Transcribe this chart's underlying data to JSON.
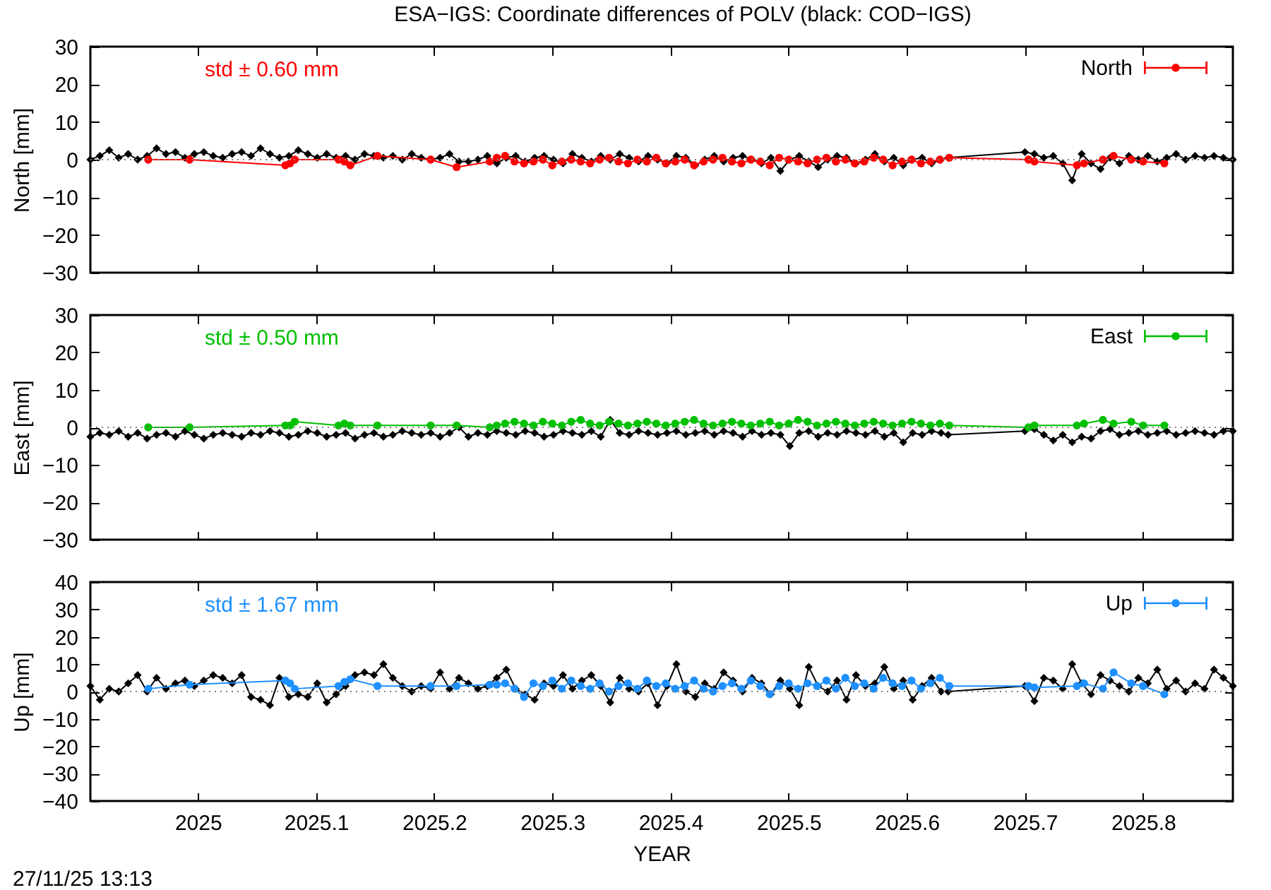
{
  "chart_data": [
    {
      "type": "line",
      "title": "ESA−IGS: Coordinate differences of POLV (black: COD−IGS)",
      "ylabel": "North [mm]",
      "xlim": [
        2024.909,
        2025.876
      ],
      "xticks": [
        2025,
        2025.1,
        2025.2,
        2025.3,
        2025.4,
        2025.5,
        2025.6,
        2025.7,
        2025.8
      ],
      "ylim": [
        -30,
        30
      ],
      "yticks": [
        -30,
        -20,
        -10,
        0,
        10,
        20,
        30
      ],
      "tick_labels": "y",
      "legend": "top right",
      "marker": "circle",
      "annotations": [
        "std ± 0.60 mm"
      ],
      "ref_lines": [
        {
          "axis": "y",
          "value": 0,
          "line_style": "dotted",
          "color": "#808080"
        }
      ],
      "series": [
        {
          "color": "#000000",
          "marker": "diamond",
          "x": [
            2024.909,
            2024.917,
            2024.925,
            2024.933,
            2024.941,
            2024.949,
            2024.957,
            2024.965,
            2024.973,
            2024.981,
            2024.989,
            2024.997,
            2025.005,
            2025.013,
            2025.021,
            2025.029,
            2025.037,
            2025.045,
            2025.053,
            2025.061,
            2025.069,
            2025.077,
            2025.085,
            2025.093,
            2025.101,
            2025.109,
            2025.117,
            2025.125,
            2025.133,
            2025.141,
            2025.149,
            2025.157,
            2025.165,
            2025.173,
            2025.181,
            2025.189,
            2025.197,
            2025.205,
            2025.213,
            2025.221,
            2025.229,
            2025.237,
            2025.245,
            2025.253,
            2025.261,
            2025.269,
            2025.277,
            2025.285,
            2025.293,
            2025.301,
            2025.309,
            2025.317,
            2025.325,
            2025.333,
            2025.341,
            2025.349,
            2025.357,
            2025.365,
            2025.373,
            2025.381,
            2025.389,
            2025.397,
            2025.405,
            2025.413,
            2025.421,
            2025.429,
            2025.437,
            2025.445,
            2025.453,
            2025.461,
            2025.469,
            2025.477,
            2025.485,
            2025.493,
            2025.501,
            2025.509,
            2025.517,
            2025.525,
            2025.533,
            2025.541,
            2025.549,
            2025.557,
            2025.565,
            2025.573,
            2025.581,
            2025.589,
            2025.597,
            2025.605,
            2025.613,
            2025.621,
            2025.629,
            2025.635,
            2025.7,
            2025.708,
            2025.716,
            2025.724,
            2025.732,
            2025.74,
            2025.748,
            2025.756,
            2025.764,
            2025.772,
            2025.78,
            2025.788,
            2025.796,
            2025.804,
            2025.812,
            2025.82,
            2025.828,
            2025.836,
            2025.844,
            2025.852,
            2025.86,
            2025.868,
            2025.876
          ],
          "values": [
            0,
            1,
            2.5,
            0.5,
            1.5,
            0,
            1,
            3,
            1.5,
            2,
            0.5,
            1.5,
            2,
            1,
            0.5,
            1.5,
            2,
            1,
            3,
            1.5,
            0.5,
            1,
            2.5,
            1.5,
            0.5,
            1.5,
            0.5,
            1,
            0,
            1.5,
            1,
            0.5,
            1,
            0,
            1.5,
            0.5,
            0,
            0.5,
            1.5,
            -0.5,
            -0.5,
            0,
            1,
            -1,
            0.5,
            1,
            -0.5,
            0.5,
            1,
            0,
            -1,
            1.5,
            0.5,
            -0.5,
            1,
            0,
            1.5,
            0.5,
            -0.5,
            1,
            0,
            -1,
            1,
            0.5,
            -1.5,
            0,
            1,
            -0.5,
            0.5,
            1,
            0,
            -1,
            0.5,
            -3,
            0,
            1,
            -0.5,
            -2,
            0,
            1,
            0.5,
            -1,
            0,
            1.5,
            -0.5,
            0.5,
            -1.5,
            0,
            0.5,
            -1,
            0,
            0.5,
            2,
            1.5,
            0.5,
            1,
            -1,
            -5.5,
            1.5,
            -1,
            -2.5,
            0.5,
            -1,
            1,
            0,
            1,
            -0.5,
            0.5,
            1.5,
            0,
            1,
            0.5,
            1,
            0.5,
            0
          ]
        },
        {
          "name": "North",
          "color": "#ff0000",
          "x": [
            2024.958,
            2024.993,
            2025.074,
            2025.078,
            2025.082,
            2025.119,
            2025.124,
            2025.129,
            2025.152,
            2025.197,
            2025.219,
            2025.247,
            2025.253,
            2025.26,
            2025.268,
            2025.276,
            2025.284,
            2025.292,
            2025.3,
            2025.308,
            2025.316,
            2025.324,
            2025.332,
            2025.34,
            2025.348,
            2025.356,
            2025.364,
            2025.372,
            2025.38,
            2025.388,
            2025.396,
            2025.404,
            2025.412,
            2025.42,
            2025.428,
            2025.436,
            2025.444,
            2025.452,
            2025.46,
            2025.468,
            2025.476,
            2025.484,
            2025.492,
            2025.5,
            2025.508,
            2025.516,
            2025.524,
            2025.532,
            2025.54,
            2025.548,
            2025.556,
            2025.564,
            2025.572,
            2025.58,
            2025.588,
            2025.596,
            2025.604,
            2025.612,
            2025.62,
            2025.628,
            2025.636,
            2025.703,
            2025.708,
            2025.744,
            2025.75,
            2025.766,
            2025.775,
            2025.79,
            2025.8,
            2025.818
          ],
          "values": [
            0,
            0,
            -1.5,
            -1,
            0,
            0,
            -0.5,
            -1.5,
            1,
            0,
            -2,
            -0.5,
            0.5,
            1,
            -0.5,
            -1,
            -0.5,
            0,
            -1.5,
            -0.5,
            0,
            -0.5,
            -1,
            0,
            0.5,
            -0.5,
            -1,
            0,
            -0.5,
            0.5,
            -1,
            -0.5,
            0,
            -1.5,
            -0.5,
            0,
            0.5,
            -0.5,
            -1,
            0,
            -0.5,
            -1.5,
            0.5,
            0,
            -0.5,
            -1,
            0,
            0.5,
            -0.5,
            0,
            -1,
            -0.5,
            0.5,
            0,
            -1.5,
            -0.5,
            0,
            -1,
            -0.5,
            0,
            0.5,
            0,
            -0.5,
            -1.5,
            -1,
            0,
            1,
            0,
            -0.5,
            -1
          ]
        }
      ]
    },
    {
      "type": "line",
      "ylabel": "East [mm]",
      "xlim": [
        2024.909,
        2025.876
      ],
      "xticks": [
        2025,
        2025.1,
        2025.2,
        2025.3,
        2025.4,
        2025.5,
        2025.6,
        2025.7,
        2025.8
      ],
      "ylim": [
        -30,
        30
      ],
      "yticks": [
        -30,
        -20,
        -10,
        0,
        10,
        20,
        30
      ],
      "tick_labels": "y",
      "legend": "top right",
      "marker": "circle",
      "annotations": [
        "std ± 0.50 mm"
      ],
      "ref_lines": [
        {
          "axis": "y",
          "value": 0,
          "line_style": "dotted",
          "color": "#808080"
        }
      ],
      "series": [
        {
          "color": "#000000",
          "marker": "diamond",
          "x": [
            2024.909,
            2024.917,
            2024.925,
            2024.933,
            2024.941,
            2024.949,
            2024.957,
            2024.965,
            2024.973,
            2024.981,
            2024.989,
            2024.997,
            2025.005,
            2025.013,
            2025.021,
            2025.029,
            2025.037,
            2025.045,
            2025.053,
            2025.061,
            2025.069,
            2025.077,
            2025.085,
            2025.093,
            2025.101,
            2025.109,
            2025.117,
            2025.125,
            2025.133,
            2025.141,
            2025.149,
            2025.157,
            2025.165,
            2025.173,
            2025.181,
            2025.189,
            2025.197,
            2025.205,
            2025.213,
            2025.221,
            2025.229,
            2025.237,
            2025.245,
            2025.253,
            2025.261,
            2025.269,
            2025.277,
            2025.285,
            2025.293,
            2025.301,
            2025.309,
            2025.317,
            2025.325,
            2025.333,
            2025.341,
            2025.349,
            2025.357,
            2025.365,
            2025.373,
            2025.381,
            2025.389,
            2025.397,
            2025.405,
            2025.413,
            2025.421,
            2025.429,
            2025.437,
            2025.445,
            2025.453,
            2025.461,
            2025.469,
            2025.477,
            2025.485,
            2025.493,
            2025.501,
            2025.509,
            2025.517,
            2025.525,
            2025.533,
            2025.541,
            2025.549,
            2025.557,
            2025.565,
            2025.573,
            2025.581,
            2025.589,
            2025.597,
            2025.605,
            2025.613,
            2025.621,
            2025.629,
            2025.635,
            2025.7,
            2025.708,
            2025.716,
            2025.724,
            2025.732,
            2025.74,
            2025.748,
            2025.756,
            2025.764,
            2025.772,
            2025.78,
            2025.788,
            2025.796,
            2025.804,
            2025.812,
            2025.82,
            2025.828,
            2025.836,
            2025.844,
            2025.852,
            2025.86,
            2025.868,
            2025.876
          ],
          "values": [
            -2.5,
            -1.5,
            -2,
            -1,
            -2.5,
            -1.5,
            -3,
            -2,
            -1.5,
            -2.5,
            -1,
            -2,
            -3,
            -2,
            -1.5,
            -2,
            -2.5,
            -1.5,
            -2,
            -1,
            -1.5,
            -2.5,
            -2,
            -1,
            -1.5,
            -2.5,
            -2,
            -1.5,
            -3,
            -2,
            -1.5,
            -2.5,
            -2,
            -1,
            -1.5,
            -2,
            -1.5,
            -2.5,
            -1.5,
            0,
            -2.5,
            -1.5,
            -2,
            -1,
            -1.5,
            -2,
            -1,
            -1.5,
            -2.5,
            -2,
            -1,
            -1.5,
            -2,
            -1,
            -2.5,
            2,
            -1.5,
            -2,
            -1,
            -1.5,
            -2,
            -1.5,
            -1,
            -2,
            -1.5,
            -1,
            -2,
            -1,
            -1.5,
            -2.5,
            -1,
            -2,
            -1.5,
            -2,
            -5,
            -1.5,
            -1,
            -2.5,
            -1.5,
            -2,
            -1,
            -1.5,
            -2,
            -1,
            -2.5,
            -1.5,
            -4,
            -1.5,
            -2,
            -1,
            -1.5,
            -2,
            -1,
            -0.5,
            -2,
            -3.5,
            -2,
            -4,
            -2.5,
            -3,
            -1,
            -0.5,
            -2,
            -1.5,
            -1,
            -2,
            -1.5,
            -1,
            -2,
            -1.5,
            -1,
            -1.5,
            -2,
            -1,
            -1
          ]
        },
        {
          "name": "East",
          "color": "#00c000",
          "x": [
            2024.958,
            2024.993,
            2025.074,
            2025.078,
            2025.082,
            2025.119,
            2025.124,
            2025.129,
            2025.152,
            2025.197,
            2025.219,
            2025.247,
            2025.253,
            2025.26,
            2025.268,
            2025.276,
            2025.284,
            2025.292,
            2025.3,
            2025.308,
            2025.316,
            2025.324,
            2025.332,
            2025.34,
            2025.348,
            2025.356,
            2025.364,
            2025.372,
            2025.38,
            2025.388,
            2025.396,
            2025.404,
            2025.412,
            2025.42,
            2025.428,
            2025.436,
            2025.444,
            2025.452,
            2025.46,
            2025.468,
            2025.476,
            2025.484,
            2025.492,
            2025.5,
            2025.508,
            2025.516,
            2025.524,
            2025.532,
            2025.54,
            2025.548,
            2025.556,
            2025.564,
            2025.572,
            2025.58,
            2025.588,
            2025.596,
            2025.604,
            2025.612,
            2025.62,
            2025.628,
            2025.636,
            2025.703,
            2025.708,
            2025.744,
            2025.75,
            2025.766,
            2025.775,
            2025.79,
            2025.8,
            2025.818
          ],
          "values": [
            0,
            0,
            0.5,
            0.5,
            1.5,
            0.5,
            1,
            0.5,
            0.5,
            0.5,
            0.5,
            0,
            0.5,
            1,
            1.5,
            1,
            0.5,
            1.5,
            1,
            0.5,
            1.5,
            2,
            1,
            0.5,
            1.5,
            1,
            0.5,
            1,
            1.5,
            1,
            0.5,
            1,
            1.5,
            2,
            1,
            0.5,
            1,
            1.5,
            1,
            0.5,
            1,
            1.5,
            0.5,
            1,
            2,
            1.5,
            0.5,
            1,
            1.5,
            1,
            0.5,
            1,
            1.5,
            1,
            0.5,
            1,
            1.5,
            1,
            0.5,
            1,
            0.5,
            0,
            0.5,
            0.5,
            1,
            2,
            1,
            1.5,
            0.5,
            0.5
          ]
        }
      ]
    },
    {
      "type": "line",
      "xlabel": "YEAR",
      "ylabel": "Up [mm]",
      "xlim": [
        2024.909,
        2025.876
      ],
      "xticks": [
        2025,
        2025.1,
        2025.2,
        2025.3,
        2025.4,
        2025.5,
        2025.6,
        2025.7,
        2025.8
      ],
      "ylim": [
        -40,
        40
      ],
      "yticks": [
        -40,
        -30,
        -20,
        -10,
        0,
        10,
        20,
        30,
        40
      ],
      "legend": "top right",
      "marker": "circle",
      "annotations": [
        "std ± 1.67 mm",
        "27/11/25 13:13"
      ],
      "ref_lines": [
        {
          "axis": "y",
          "value": 0,
          "line_style": "dotted",
          "color": "#808080"
        }
      ],
      "series": [
        {
          "color": "#000000",
          "marker": "diamond",
          "x": [
            2024.909,
            2024.917,
            2024.925,
            2024.933,
            2024.941,
            2024.949,
            2024.957,
            2024.965,
            2024.973,
            2024.981,
            2024.989,
            2024.997,
            2025.005,
            2025.013,
            2025.021,
            2025.029,
            2025.037,
            2025.045,
            2025.053,
            2025.061,
            2025.069,
            2025.077,
            2025.085,
            2025.093,
            2025.101,
            2025.109,
            2025.117,
            2025.125,
            2025.133,
            2025.141,
            2025.149,
            2025.157,
            2025.165,
            2025.173,
            2025.181,
            2025.189,
            2025.197,
            2025.205,
            2025.213,
            2025.221,
            2025.229,
            2025.237,
            2025.245,
            2025.253,
            2025.261,
            2025.269,
            2025.277,
            2025.285,
            2025.293,
            2025.301,
            2025.309,
            2025.317,
            2025.325,
            2025.333,
            2025.341,
            2025.349,
            2025.357,
            2025.365,
            2025.373,
            2025.381,
            2025.389,
            2025.397,
            2025.405,
            2025.413,
            2025.421,
            2025.429,
            2025.437,
            2025.445,
            2025.453,
            2025.461,
            2025.469,
            2025.477,
            2025.485,
            2025.493,
            2025.501,
            2025.509,
            2025.517,
            2025.525,
            2025.533,
            2025.541,
            2025.549,
            2025.557,
            2025.565,
            2025.573,
            2025.581,
            2025.589,
            2025.597,
            2025.605,
            2025.613,
            2025.621,
            2025.629,
            2025.635,
            2025.7,
            2025.708,
            2025.716,
            2025.724,
            2025.732,
            2025.74,
            2025.748,
            2025.756,
            2025.764,
            2025.772,
            2025.78,
            2025.788,
            2025.796,
            2025.804,
            2025.812,
            2025.82,
            2025.828,
            2025.836,
            2025.844,
            2025.852,
            2025.86,
            2025.868,
            2025.876
          ],
          "values": [
            2,
            -3,
            1,
            0,
            3,
            6,
            0,
            5,
            1,
            3,
            4,
            2,
            4,
            6,
            5,
            3,
            6,
            -2,
            -3,
            -5,
            5,
            -2,
            -1,
            -2,
            3,
            -4,
            -1,
            2,
            6,
            7,
            6,
            10,
            5,
            2,
            0,
            2,
            1,
            7,
            1,
            5,
            3,
            1,
            2,
            5,
            8,
            1,
            -1,
            -3,
            3,
            2,
            6,
            1,
            4,
            6,
            2,
            -4,
            5,
            1,
            0,
            3,
            -5,
            2,
            10,
            0,
            -2,
            3,
            1,
            7,
            4,
            0,
            5,
            3,
            -1,
            4,
            1,
            -5,
            9,
            2,
            0,
            4,
            -3,
            6,
            2,
            3,
            9,
            1,
            4,
            -3,
            2,
            5,
            0,
            0,
            2,
            -3.5,
            5,
            4,
            1,
            10,
            3,
            -1,
            6,
            4,
            2,
            0,
            5,
            3,
            8,
            1,
            4,
            0,
            3,
            1,
            8,
            5,
            2
          ]
        },
        {
          "name": "Up",
          "color": "#1e90ff",
          "x": [
            2024.958,
            2024.993,
            2025.074,
            2025.078,
            2025.082,
            2025.119,
            2025.124,
            2025.129,
            2025.152,
            2025.197,
            2025.219,
            2025.247,
            2025.253,
            2025.26,
            2025.268,
            2025.276,
            2025.284,
            2025.292,
            2025.3,
            2025.308,
            2025.316,
            2025.324,
            2025.332,
            2025.34,
            2025.348,
            2025.356,
            2025.364,
            2025.372,
            2025.38,
            2025.388,
            2025.396,
            2025.404,
            2025.412,
            2025.42,
            2025.428,
            2025.436,
            2025.444,
            2025.452,
            2025.46,
            2025.468,
            2025.476,
            2025.484,
            2025.492,
            2025.5,
            2025.508,
            2025.516,
            2025.524,
            2025.532,
            2025.54,
            2025.548,
            2025.556,
            2025.564,
            2025.572,
            2025.58,
            2025.588,
            2025.596,
            2025.604,
            2025.612,
            2025.62,
            2025.628,
            2025.636,
            2025.703,
            2025.708,
            2025.744,
            2025.75,
            2025.766,
            2025.775,
            2025.79,
            2025.8,
            2025.818
          ],
          "values": [
            1,
            2.5,
            4,
            3,
            1,
            2,
            3.5,
            4.5,
            2,
            2,
            2,
            2.5,
            2.5,
            3,
            1,
            -2,
            3,
            2,
            4,
            1,
            4,
            2,
            1,
            3,
            0,
            2,
            3,
            1,
            4,
            2,
            3,
            1,
            2,
            4,
            1,
            0,
            2,
            3,
            1,
            4,
            2,
            -1,
            2,
            3,
            1,
            3,
            2,
            4,
            1,
            5,
            2,
            3,
            1,
            5,
            3,
            2,
            4,
            1,
            3,
            5,
            2,
            2,
            1.5,
            2,
            3,
            1,
            7,
            3,
            2,
            -1
          ]
        }
      ]
    }
  ]
}
